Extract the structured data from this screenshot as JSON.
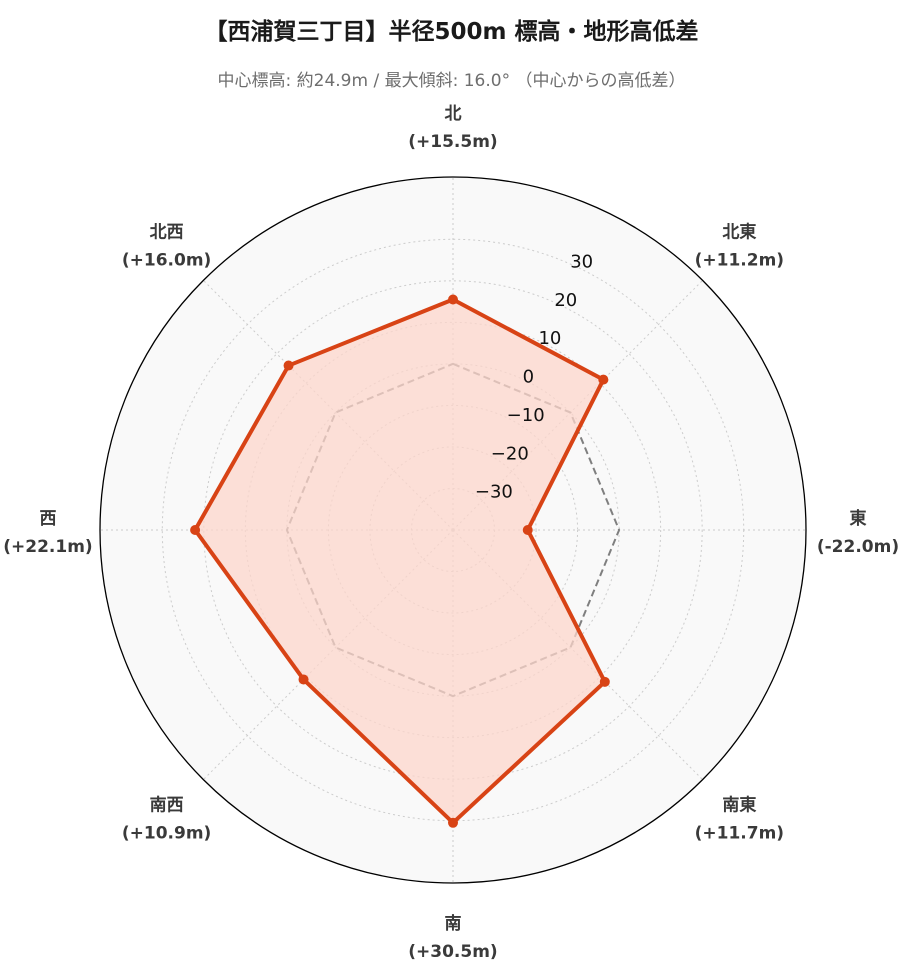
{
  "title": "【西浦賀三丁目】半径500m 標高・地形高低差",
  "subtitle": "中心標高: 約24.9m / 最大傾斜: 16.0° （中心からの高低差）",
  "colors": {
    "series_line": "#d84315",
    "series_fill": "#fcd5cb",
    "baseline": "#7f7f7f",
    "grid": "#cccccc",
    "background": "#f9f9f9",
    "outline": "#000000"
  },
  "chart_data": {
    "type": "radar",
    "categories": [
      "北",
      "北東",
      "東",
      "南東",
      "南",
      "南西",
      "西",
      "北西"
    ],
    "category_value_labels": [
      "(+15.5m)",
      "(+11.2m)",
      "(-22.0m)",
      "(+11.7m)",
      "(+30.5m)",
      "(+10.9m)",
      "(+22.1m)",
      "(+16.0m)"
    ],
    "values": [
      15.5,
      11.2,
      -22.0,
      11.7,
      30.5,
      10.9,
      22.1,
      16.0
    ],
    "baseline_value": 0,
    "rlim": [
      -40,
      45
    ],
    "rticks": [
      -30,
      -20,
      -10,
      0,
      10,
      20,
      30
    ],
    "rtick_labels": [
      "−30",
      "−20",
      "−10",
      "0",
      "10",
      "20",
      "30"
    ],
    "grid": true,
    "direction": "clockwise",
    "start_angle": "north"
  }
}
